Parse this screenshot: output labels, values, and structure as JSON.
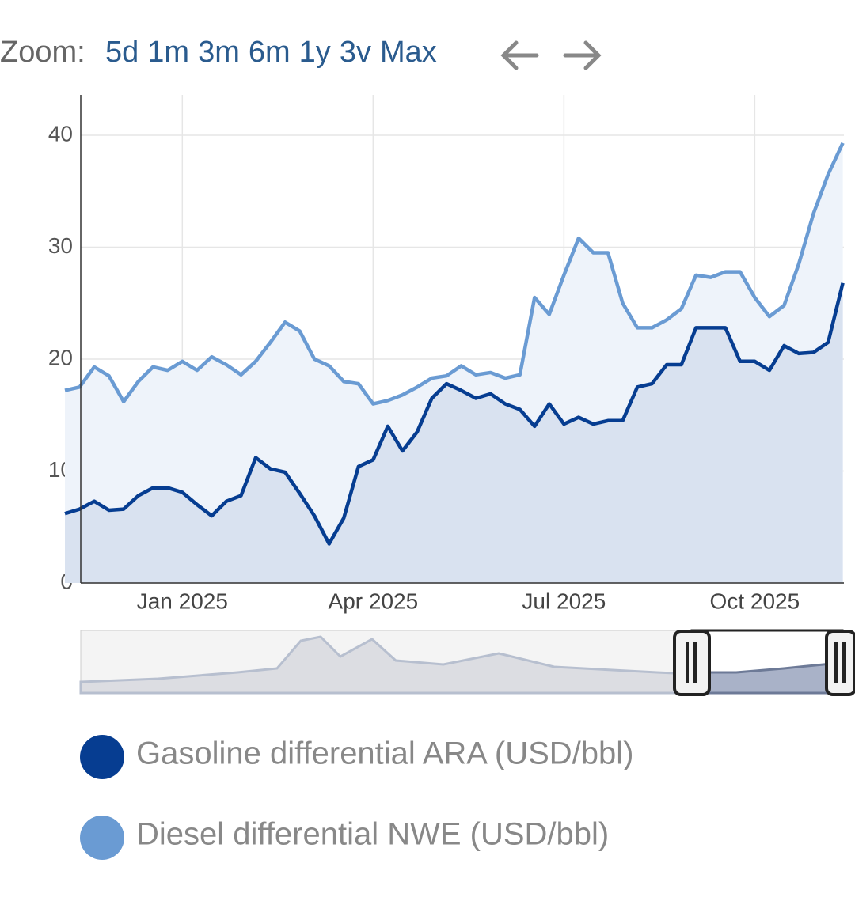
{
  "zoom": {
    "label": "Zoom:",
    "buttons": [
      "5d",
      "1m",
      "3m",
      "6m",
      "1y",
      "3v",
      "Max"
    ]
  },
  "chart_data": {
    "type": "area",
    "categories": [
      null,
      null,
      null,
      null,
      null,
      null,
      null,
      null,
      "Jan 2025",
      null,
      null,
      null,
      null,
      null,
      null,
      null,
      null,
      null,
      null,
      null,
      null,
      "Apr 2025",
      null,
      null,
      null,
      null,
      null,
      null,
      null,
      null,
      null,
      null,
      null,
      null,
      "Jul 2025",
      null,
      null,
      null,
      null,
      null,
      null,
      null,
      null,
      null,
      null,
      null,
      null,
      "Oct 2025",
      null,
      null,
      null,
      null,
      null,
      null
    ],
    "series": [
      {
        "name": "Gasoline differential ARA (USD/bbl)",
        "color": "#063d91",
        "fill": "#d9e2f0",
        "values": [
          6.2,
          6.6,
          7.3,
          6.5,
          6.6,
          7.8,
          8.5,
          8.5,
          8.1,
          7.0,
          6.0,
          7.3,
          7.8,
          11.2,
          10.2,
          9.9,
          8.0,
          6.0,
          3.5,
          5.8,
          10.4,
          11.0,
          14.0,
          11.8,
          13.5,
          16.5,
          17.8,
          17.2,
          16.5,
          16.9,
          16.0,
          15.5,
          14.0,
          16.0,
          14.2,
          14.8,
          14.2,
          14.5,
          14.5,
          17.5,
          17.8,
          19.5,
          19.5,
          22.8,
          22.8,
          22.8,
          19.8,
          19.8,
          19.0,
          21.2,
          20.5,
          20.6,
          21.5,
          26.8
        ]
      },
      {
        "name": "Diesel differential NWE (USD/bbl)",
        "color": "#6a9bd3",
        "fill": "#eef3fa",
        "values": [
          17.2,
          17.5,
          19.3,
          18.5,
          16.2,
          18.0,
          19.3,
          19.0,
          19.8,
          19.0,
          20.2,
          19.5,
          18.6,
          19.8,
          21.5,
          23.3,
          22.5,
          20.0,
          19.4,
          18.0,
          17.8,
          16.0,
          16.3,
          16.8,
          17.5,
          18.3,
          18.5,
          19.4,
          18.6,
          18.8,
          18.3,
          18.6,
          25.5,
          24.0,
          27.5,
          30.8,
          29.5,
          29.5,
          25.0,
          22.8,
          22.8,
          23.5,
          24.5,
          27.5,
          27.3,
          27.8,
          27.8,
          25.5,
          23.8,
          24.8,
          28.5,
          33.0,
          36.5,
          39.3
        ]
      }
    ],
    "ylim": [
      0,
      43.6
    ],
    "yticks": [
      0,
      10,
      20,
      30,
      40
    ],
    "grid": true
  }
}
